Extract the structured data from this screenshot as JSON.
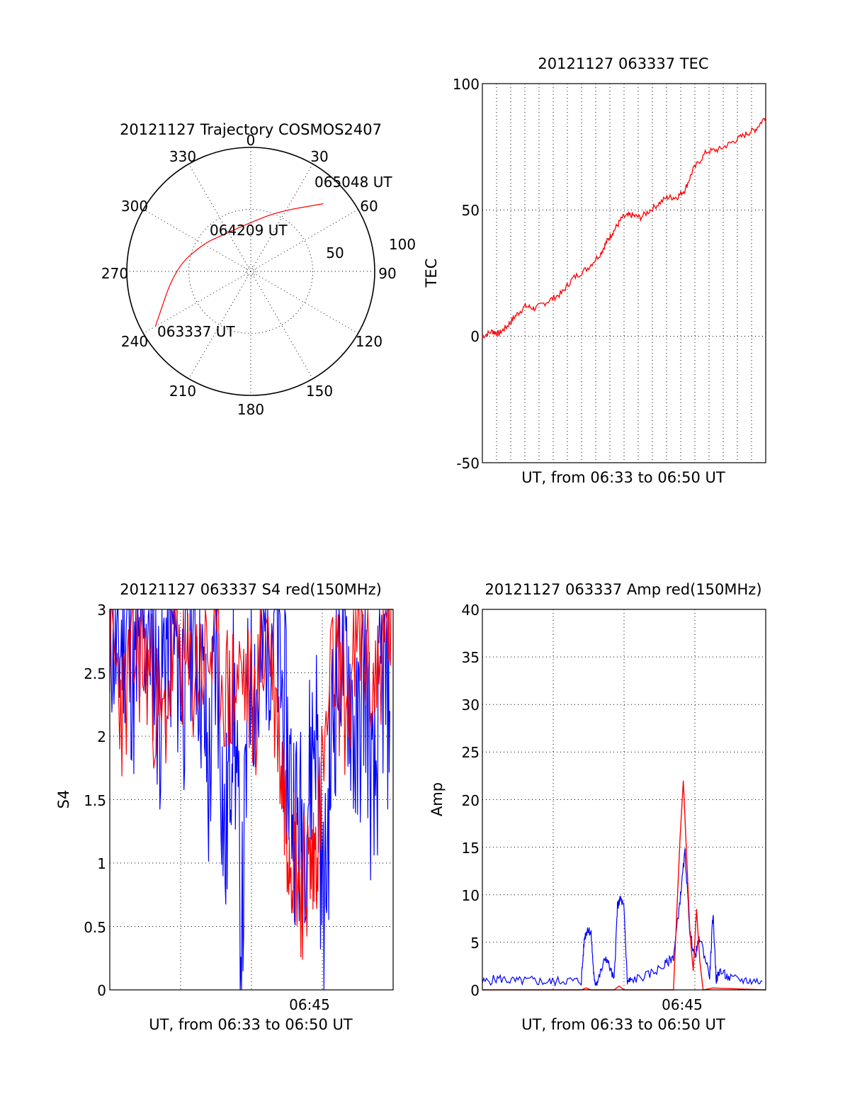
{
  "colors": {
    "primary": "#ff0000",
    "secondary": "#0000ff",
    "axes": "#000000",
    "background": "#ffffff"
  },
  "chart_data": [
    {
      "type": "polar",
      "title": "20121127 Trajectory COSMOS2407",
      "azimuth_labels": [
        "0",
        "30",
        "60",
        "90",
        "120",
        "150",
        "180",
        "210",
        "240",
        "270",
        "300",
        "330"
      ],
      "radius_labels": [
        "50",
        "100"
      ],
      "grid": true,
      "track_points": [
        {
          "azimuth": 240,
          "elevation": 10,
          "label": "063337 UT"
        },
        {
          "azimuth": 272,
          "elevation": 35
        },
        {
          "azimuth": 300,
          "elevation": 50
        },
        {
          "azimuth": 325,
          "elevation": 57
        },
        {
          "azimuth": 358,
          "elevation": 55,
          "label": "064209 UT"
        },
        {
          "azimuth": 25,
          "elevation": 42
        },
        {
          "azimuth": 47,
          "elevation": 18,
          "label": "065048 UT"
        }
      ]
    },
    {
      "type": "line",
      "title": "20121127 063337 TEC",
      "xlabel": "UT, from 06:33 to 06:50 UT",
      "ylabel": "TEC",
      "xlim": [
        0,
        17.2
      ],
      "ylim": [
        -50,
        100
      ],
      "yticks": [
        "100",
        "50",
        "0",
        "-50"
      ],
      "grid": true,
      "series": [
        {
          "color": "#ff0000",
          "x": [
            0,
            0.6,
            1.0,
            1.5,
            2.0,
            2.6,
            3.2,
            4.0,
            4.8,
            5.5,
            6.4,
            7.2,
            7.6,
            8.0,
            8.5,
            9.0,
            9.6,
            10.4,
            11.2,
            11.8,
            12.3,
            12.8,
            13.6,
            14.4,
            15.2,
            16.0,
            16.6,
            17.2
          ],
          "y": [
            0,
            2,
            1,
            4,
            8,
            12,
            11,
            14,
            17,
            23,
            27,
            33,
            38,
            42,
            47,
            48,
            47,
            51,
            55,
            55,
            58,
            66,
            73,
            74,
            77,
            80,
            82,
            87
          ]
        }
      ]
    },
    {
      "type": "line",
      "title": "20121127 063337 S4 red(150MHz)",
      "xlabel": "UT, from 06:33 to 06:50 UT",
      "ylabel": "S4",
      "xlim": [
        0,
        17.2
      ],
      "ylim": [
        0,
        3
      ],
      "yticks": [
        "3",
        "2.5",
        "2",
        "1.5",
        "1",
        "0.5",
        "0"
      ],
      "xtick_labels": [
        {
          "x": 12,
          "label": "06:45"
        }
      ],
      "grid": true,
      "series": [
        {
          "color": "#0000ff",
          "x": [
            0,
            0.5,
            1,
            1.5,
            2,
            2.5,
            3,
            3.5,
            4,
            4.5,
            5,
            5.5,
            6,
            6.5,
            7,
            7.5,
            8,
            8.5,
            9,
            9.5,
            10,
            10.5,
            11,
            11.5,
            12,
            12.5,
            13,
            13.5,
            14,
            14.5,
            15,
            15.5,
            16,
            16.5,
            17
          ],
          "y": [
            3.0,
            2.6,
            3.0,
            2.4,
            2.8,
            3.0,
            2.2,
            2.9,
            2.7,
            2.4,
            3.0,
            2.6,
            1.6,
            2.8,
            1.0,
            2.5,
            0.3,
            2.7,
            2.3,
            2.9,
            3.0,
            2.3,
            1.6,
            1.2,
            1.5,
            2.2,
            0.5,
            2.1,
            2.8,
            2.5,
            1.8,
            2.6,
            1.3,
            2.5,
            2.2
          ]
        },
        {
          "color": "#ff0000",
          "x": [
            0,
            0.8,
            1.6,
            2.4,
            3.2,
            4.0,
            4.8,
            5.6,
            6.4,
            7.2,
            8.0,
            8.8,
            9.6,
            10.4,
            10.8,
            11.2,
            11.6,
            12.0,
            12.4,
            12.8,
            13.6,
            14.4,
            15.2,
            16.0,
            16.8,
            17.2
          ],
          "y": [
            2.8,
            2.2,
            2.7,
            2.5,
            2.0,
            2.8,
            2.4,
            2.6,
            2.7,
            2.3,
            2.5,
            2.2,
            2.9,
            1.8,
            1.3,
            1.1,
            0.8,
            0.9,
            1.0,
            1.5,
            2.6,
            2.2,
            2.8,
            2.4,
            2.8,
            3.0
          ]
        }
      ]
    },
    {
      "type": "line",
      "title": "20121127 063337 Amp red(150MHz)",
      "xlabel": "UT, from 06:33 to 06:50 UT",
      "ylabel": "Amp",
      "xlim": [
        0,
        17.2
      ],
      "ylim": [
        0,
        40
      ],
      "yticks": [
        "40",
        "35",
        "30",
        "25",
        "20",
        "15",
        "10",
        "5",
        "0"
      ],
      "xtick_labels": [
        {
          "x": 12,
          "label": "06:45"
        }
      ],
      "grid": true,
      "series": [
        {
          "color": "#0000ff",
          "x": [
            0,
            1,
            2,
            3,
            4,
            5,
            6,
            6.2,
            6.4,
            6.6,
            6.8,
            7,
            7.5,
            8,
            8.2,
            8.4,
            8.6,
            8.8,
            9,
            10,
            11,
            11.6,
            12,
            12.3,
            12.6,
            12.9,
            13.2,
            13.8,
            14.0,
            14.2,
            14.4,
            15,
            16,
            17
          ],
          "y": [
            0.8,
            1.2,
            0.9,
            1.0,
            0.8,
            1.0,
            0.9,
            5.5,
            6.5,
            5.8,
            0.7,
            0.9,
            3.5,
            1.0,
            8.8,
            9.6,
            8.5,
            0.8,
            1.0,
            1.5,
            2.5,
            3.5,
            9.5,
            14.5,
            6.0,
            3.5,
            5.5,
            1.5,
            8.0,
            1.0,
            2.0,
            1.2,
            1.0,
            0.9
          ]
        },
        {
          "color": "#ff0000",
          "x": [
            0,
            6,
            6.3,
            6.6,
            8,
            8.3,
            8.6,
            11.6,
            11.8,
            12.0,
            12.2,
            12.4,
            12.6,
            12.8,
            13.0,
            13.2,
            13.4,
            14,
            17.2
          ],
          "y": [
            0,
            0,
            0.2,
            0,
            0,
            0.4,
            0,
            0,
            8,
            16,
            22,
            14,
            6,
            2,
            8.5,
            3,
            0,
            0.2,
            0
          ]
        }
      ]
    }
  ]
}
